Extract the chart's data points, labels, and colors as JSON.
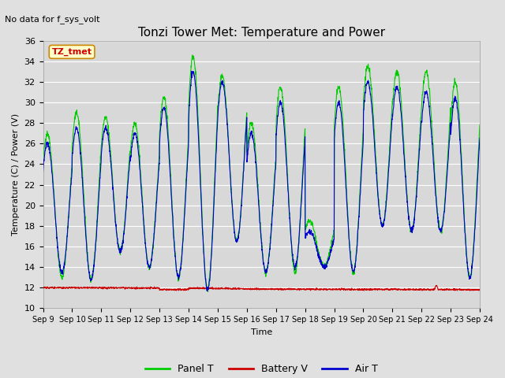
{
  "title": "Tonzi Tower Met: Temperature and Power",
  "no_data_text": "No data for f_sys_volt",
  "ylabel": "Temperature (C) / Power (V)",
  "xlabel": "Time",
  "ylim": [
    10,
    36
  ],
  "yticks": [
    10,
    12,
    14,
    16,
    18,
    20,
    22,
    24,
    26,
    28,
    30,
    32,
    34,
    36
  ],
  "xtick_labels": [
    "Sep 9",
    "Sep 10",
    "Sep 11",
    "Sep 12",
    "Sep 13",
    "Sep 14",
    "Sep 15",
    "Sep 16",
    "Sep 17",
    "Sep 18",
    "Sep 19",
    "Sep 20",
    "Sep 21",
    "Sep 22",
    "Sep 23",
    "Sep 24"
  ],
  "legend_entries": [
    "Panel T",
    "Battery V",
    "Air T"
  ],
  "legend_colors": [
    "#00cc00",
    "#cc0000",
    "#0000cc"
  ],
  "panel_color": "#00cc00",
  "battery_color": "#cc0000",
  "air_color": "#0000cc",
  "bg_color": "#e0e0e0",
  "plot_bg_color": "#d8d8d8",
  "legend_label_color": "#cc0000",
  "legend_label_text": "TZ_tmet",
  "title_fontsize": 11,
  "axis_fontsize": 8,
  "tick_fontsize": 8,
  "n_days": 15,
  "pts_per_day": 144,
  "panel_base": 12.0,
  "air_base": 12.0,
  "battery_base": 12.0,
  "target_panel_peaks": [
    27.0,
    29.0,
    28.5,
    28.0,
    30.5,
    34.5,
    32.5,
    28.0,
    31.5,
    18.5,
    31.5,
    33.5,
    33.0,
    33.0,
    32.0
  ],
  "target_air_peaks": [
    26.0,
    27.5,
    27.5,
    27.0,
    29.5,
    33.0,
    32.0,
    27.0,
    30.0,
    17.5,
    30.0,
    32.0,
    31.5,
    31.0,
    30.5
  ],
  "troughs_panel": [
    13.0,
    12.8,
    15.5,
    14.0,
    13.0,
    11.8,
    16.5,
    13.5,
    13.5,
    14.0,
    13.5,
    18.0,
    17.5,
    17.5,
    13.0
  ],
  "troughs_air": [
    13.5,
    12.8,
    15.5,
    14.0,
    13.0,
    11.8,
    16.5,
    13.5,
    14.0,
    14.0,
    13.5,
    18.0,
    17.5,
    17.5,
    13.0
  ]
}
